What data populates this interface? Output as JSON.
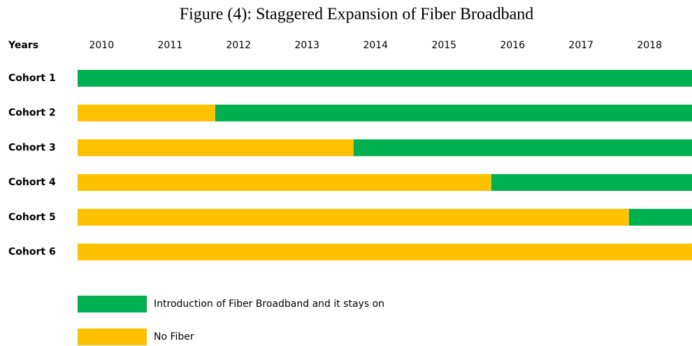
{
  "chart_data": {
    "type": "timeline",
    "title": "Figure (4): Staggered Expansion of Fiber Broadband",
    "x_label": "Years",
    "xlim": [
      2009.65,
      2018.62
    ],
    "xticks": [
      2010,
      2011,
      2012,
      2013,
      2014,
      2015,
      2016,
      2017,
      2018
    ],
    "categories": [
      "Cohort 1",
      "Cohort 2",
      "Cohort 3",
      "Cohort 4",
      "Cohort 5",
      "Cohort 6"
    ],
    "fiber_start": [
      2009.65,
      2011.66,
      2013.68,
      2015.69,
      2017.7,
      null
    ],
    "series": [
      {
        "name": "Introduction of Fiber Broadband and it stays on",
        "color": "#00b050"
      },
      {
        "name": "No Fiber",
        "color": "#ffc000"
      }
    ]
  }
}
